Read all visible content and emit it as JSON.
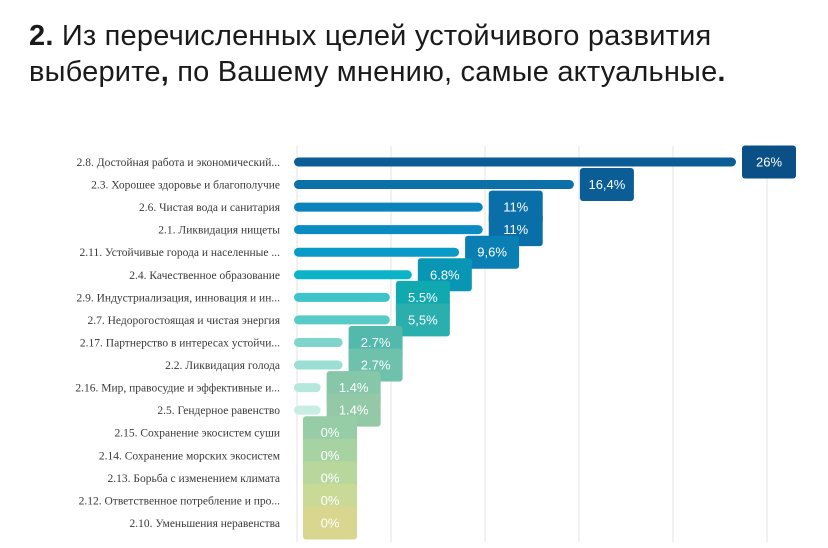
{
  "title": {
    "number": "2.",
    "part1": " Из перечисленных целей устойчивого развития выберите",
    "comma1": ",",
    "part2": " по Вашему мнению, самые актуальные",
    "period": "."
  },
  "chart_data": {
    "type": "bar",
    "orientation": "horizontal",
    "grid": "vertical",
    "categories": [
      "2.8. Достойная работа и экономический...",
      "2.3. Хорошее здоровье и благополучие",
      "2.6. Чистая вода и санитария",
      "2.1. Ликвидация нищеты",
      "2.11. Устойчивые города и населенные ...",
      "2.4. Качественное образование",
      "2.9. Индустриализация, инновация и ин...",
      "2.7. Недорогостоящая и чистая энергия",
      "2.17. Партнерство в интересах устойчи...",
      "2.2. Ликвидация голода",
      "2.16. Мир, правосудие и эффективные и...",
      "2.5. Гендерное равенство",
      "2.15. Сохранение экосистем суши",
      "2.14. Сохранение морских экосистем",
      "2.13. Борьба с изменением климата",
      "2.12. Ответственное потребление и про...",
      "2.10. Уменьшения неравенства"
    ],
    "values": [
      26,
      16.4,
      11,
      11,
      9.6,
      6.8,
      5.5,
      5.5,
      2.7,
      2.7,
      1.4,
      1.4,
      0,
      0,
      0,
      0,
      0
    ],
    "value_labels": [
      "26%",
      "16,4%",
      "11%",
      "11%",
      "9,6%",
      "6.8%",
      "5.5%",
      "5,5%",
      "2.7%",
      "2.7%",
      "1.4%",
      "1.4%",
      "0%",
      "0%",
      "0%",
      "0%",
      "0%"
    ],
    "xlim": [
      0,
      26
    ],
    "colors": {
      "bars": [
        "#0B5D96",
        "#0B6FA8",
        "#0A82BC",
        "#0A8CC3",
        "#0A9AC8",
        "#0AB3C8",
        "#3CC4C9",
        "#58CBC7",
        "#7FD5CC",
        "#9ADED4",
        "#B6E7DC",
        "#C8EDE2",
        "#9FD6BE",
        "#A5D7B6",
        "#B3DAAE",
        "#C6DBA2",
        "#D9D89B"
      ],
      "labels": [
        "#0A4F86",
        "#0B5D96",
        "#0A6EA8",
        "#0A6EA8",
        "#0A7FB4",
        "#0996B4",
        "#10A9AF",
        "#2AAFAE",
        "#52B9AC",
        "#6EC1AA",
        "#86C7AA",
        "#94C9A8",
        "#97CDA6",
        "#A7D3A2",
        "#B8D79C",
        "#C9D996",
        "#D9D690"
      ]
    }
  }
}
